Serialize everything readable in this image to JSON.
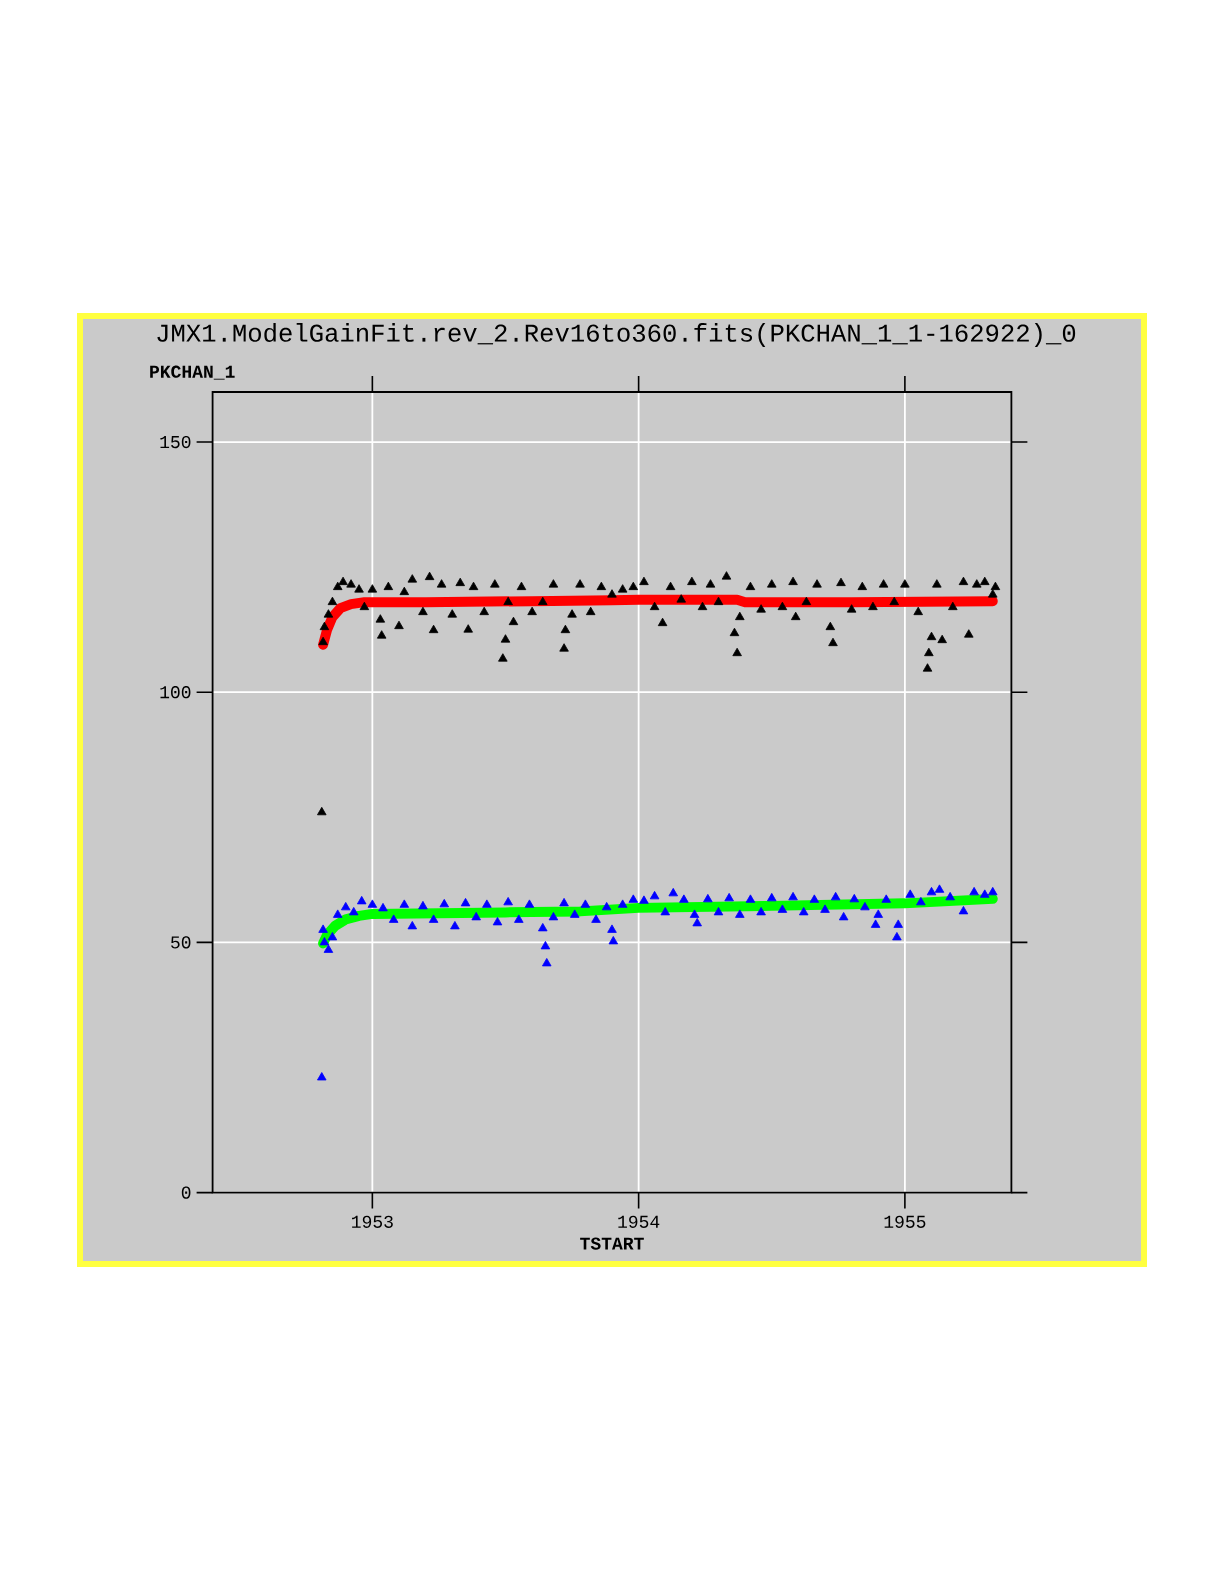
{
  "chart_data": {
    "type": "scatter",
    "title": "JMX1.ModelGainFit.rev_2.Rev16to360.fits(PKCHAN_1_1-162922)_0",
    "xlabel": "TSTART",
    "ylabel": "PKCHAN_1",
    "xlim": [
      1952.4,
      1955.4
    ],
    "ylim": [
      0,
      160
    ],
    "xticks": [
      1953,
      1954,
      1955
    ],
    "yticks": [
      0,
      50,
      100,
      150
    ],
    "grid": true,
    "series": [
      {
        "marker": "triangle",
        "color": "#000000",
        "x": [
          1952.81,
          1952.815,
          1952.82,
          1952.835,
          1952.85,
          1952.87,
          1952.89,
          1952.92,
          1952.95,
          1952.97,
          1953.0,
          1953.03,
          1953.035,
          1953.06,
          1953.1,
          1953.12,
          1953.15,
          1953.19,
          1953.215,
          1953.23,
          1953.26,
          1953.3,
          1953.33,
          1953.36,
          1953.38,
          1953.42,
          1953.46,
          1953.49,
          1953.5,
          1953.51,
          1953.53,
          1953.56,
          1953.6,
          1953.64,
          1953.68,
          1953.72,
          1953.725,
          1953.75,
          1953.78,
          1953.82,
          1953.86,
          1953.9,
          1953.94,
          1953.98,
          1954.02,
          1954.06,
          1954.09,
          1954.12,
          1954.16,
          1954.2,
          1954.24,
          1954.27,
          1954.3,
          1954.33,
          1954.36,
          1954.37,
          1954.38,
          1954.42,
          1954.46,
          1954.5,
          1954.54,
          1954.58,
          1954.59,
          1954.63,
          1954.67,
          1954.72,
          1954.73,
          1954.76,
          1954.8,
          1954.84,
          1954.88,
          1954.92,
          1954.96,
          1955.0,
          1955.05,
          1955.085,
          1955.09,
          1955.1,
          1955.12,
          1955.14,
          1955.18,
          1955.22,
          1955.24,
          1955.27,
          1955.3,
          1955.33,
          1955.34
        ],
        "values": [
          76,
          110,
          113,
          115.5,
          118,
          121,
          122,
          121.5,
          120.5,
          117,
          120.5,
          114.5,
          111.3,
          121,
          113.2,
          120,
          122.5,
          116,
          123,
          112.4,
          121.5,
          115.5,
          121.8,
          112.5,
          121,
          116,
          121.5,
          106.7,
          110.5,
          118,
          114,
          121,
          116,
          118,
          121.5,
          108.7,
          112.4,
          115.5,
          121.5,
          116,
          121,
          119.5,
          120.5,
          121,
          122,
          117,
          113.8,
          121,
          118.5,
          122,
          117,
          121.5,
          118,
          123.1,
          111.8,
          107.8,
          115,
          121,
          116.5,
          121.5,
          117,
          122,
          115,
          118,
          121.5,
          113,
          109.8,
          121.8,
          116.5,
          121,
          117,
          121.5,
          118,
          121.5,
          116,
          104.7,
          107.8,
          111,
          121.5,
          110.4,
          117,
          122,
          111.5,
          121.5,
          122,
          119.5,
          121
        ]
      },
      {
        "type": "line",
        "color": "#ff0000",
        "x": [
          1952.815,
          1952.83,
          1952.85,
          1952.88,
          1952.92,
          1952.97,
          1953.2,
          1953.6,
          1953.9,
          1954.0,
          1954.37,
          1954.4,
          1954.8,
          1955.33
        ],
        "values": [
          109.5,
          112.5,
          115,
          116.8,
          117.6,
          118,
          118,
          118.2,
          118.4,
          118.5,
          118.5,
          118,
          118,
          118.2
        ]
      },
      {
        "marker": "triangle",
        "color": "#0000ff",
        "x": [
          1952.81,
          1952.815,
          1952.82,
          1952.835,
          1952.85,
          1952.87,
          1952.9,
          1952.93,
          1952.96,
          1953.0,
          1953.04,
          1953.08,
          1953.12,
          1953.15,
          1953.19,
          1953.23,
          1953.27,
          1953.31,
          1953.35,
          1953.39,
          1953.43,
          1953.47,
          1953.51,
          1953.55,
          1953.59,
          1953.64,
          1953.65,
          1953.655,
          1953.68,
          1953.72,
          1953.76,
          1953.8,
          1953.84,
          1953.88,
          1953.9,
          1953.905,
          1953.94,
          1953.98,
          1954.02,
          1954.06,
          1954.1,
          1954.13,
          1954.17,
          1954.21,
          1954.22,
          1954.26,
          1954.3,
          1954.34,
          1954.38,
          1954.42,
          1954.46,
          1954.5,
          1954.54,
          1954.58,
          1954.62,
          1954.66,
          1954.7,
          1954.74,
          1954.77,
          1954.81,
          1954.85,
          1954.89,
          1954.9,
          1954.93,
          1954.97,
          1954.975,
          1955.02,
          1955.06,
          1955.1,
          1955.13,
          1955.17,
          1955.22,
          1955.26,
          1955.3,
          1955.33
        ],
        "values": [
          23,
          52.5,
          50,
          48.5,
          51,
          55.5,
          57,
          56,
          58.2,
          57.5,
          56.8,
          54.5,
          57.5,
          53.2,
          57.2,
          54.5,
          57.6,
          53.2,
          57.8,
          55,
          57.5,
          54,
          58,
          54.5,
          57.5,
          52.8,
          49.2,
          45.8,
          55,
          57.8,
          55.5,
          57.5,
          54.5,
          57,
          52.5,
          50.2,
          57.5,
          58.5,
          58.3,
          59.2,
          56,
          59.8,
          58.5,
          55.5,
          53.8,
          58.6,
          56,
          58.8,
          55.5,
          58.5,
          56,
          58.8,
          56.5,
          59,
          56,
          58.5,
          56.5,
          59,
          55,
          58.6,
          57,
          53.5,
          55.5,
          58.5,
          51,
          53.5,
          59.5,
          58,
          60,
          60.5,
          59,
          56.2,
          60,
          59.5,
          60
        ]
      },
      {
        "type": "line",
        "color": "#00ff00",
        "x": [
          1952.815,
          1952.83,
          1952.86,
          1952.9,
          1952.95,
          1953.0,
          1953.5,
          1953.78,
          1954.0,
          1954.5,
          1955.0,
          1955.33
        ],
        "values": [
          49.8,
          51.5,
          53.3,
          54.6,
          55.3,
          55.7,
          56.0,
          56.2,
          56.9,
          57.3,
          57.8,
          58.7
        ]
      }
    ]
  }
}
